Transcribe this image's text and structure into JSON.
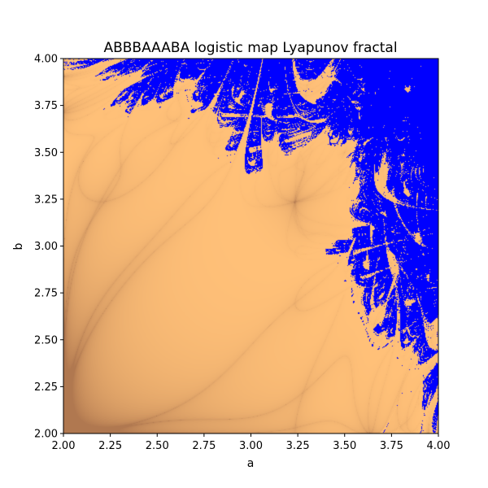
{
  "chart_data": {
    "type": "heatmap",
    "title": "ABBBAAABA logistic map Lyapunov fractal",
    "xlabel": "a",
    "ylabel": "b",
    "sequence": "ABBBAAABA",
    "xlim": [
      2.0,
      4.0
    ],
    "ylim": [
      2.0,
      4.0
    ],
    "x_ticks": [
      "2.00",
      "2.25",
      "2.50",
      "2.75",
      "3.00",
      "3.25",
      "3.50",
      "3.75",
      "4.00"
    ],
    "y_ticks": [
      "2.00",
      "2.25",
      "2.50",
      "2.75",
      "3.00",
      "3.25",
      "3.50",
      "3.75",
      "4.00"
    ],
    "grid": false,
    "colors": {
      "chaotic": "#0000ff",
      "stable_light": "#ffc078",
      "stable_dark": "#b07850"
    }
  }
}
